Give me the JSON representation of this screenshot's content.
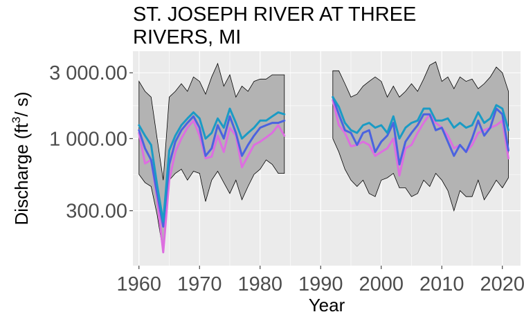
{
  "title": "ST. JOSEPH RIVER AT THREE\nRIVERS, MI",
  "chart_data": {
    "type": "line",
    "title": "ST. JOSEPH RIVER AT THREE RIVERS, MI",
    "xlabel": "Year",
    "ylabel_main": "Discharge (ft",
    "ylabel_sup": "3",
    "ylabel_tail": "/ s)",
    "y_scale": "log",
    "xlim": [
      1959,
      2023
    ],
    "ylim": [
      120,
      4300
    ],
    "x_ticks": [
      1960,
      1970,
      1980,
      1990,
      2000,
      2010,
      2020
    ],
    "x_tick_labels": [
      "1960",
      "1970",
      "1980",
      "1990",
      "2000",
      "2010",
      "2020"
    ],
    "y_ticks": [
      300,
      1000,
      3000
    ],
    "y_tick_labels": [
      "300.00",
      "1 000.00",
      "3 000.00"
    ],
    "grid": true,
    "colors": {
      "panel": "#ebebeb",
      "grid": "#ffffff",
      "ribbon": "#b3b3b3",
      "series_teal": "#1a9bc5",
      "series_blue": "#4b63e0",
      "series_magenta": "#dd6ee0"
    },
    "segments": [
      {
        "x": [
          1960,
          1961,
          1962,
          1963,
          1964,
          1965,
          1966,
          1967,
          1968,
          1969,
          1970,
          1971,
          1972,
          1973,
          1974,
          1975,
          1976,
          1977,
          1978,
          1979,
          1980,
          1981,
          1982,
          1983,
          1984
        ],
        "ribbon_upper": [
          2600,
          2200,
          2000,
          1000,
          500,
          2000,
          2200,
          2500,
          2200,
          2800,
          2600,
          2100,
          2800,
          3500,
          2400,
          2900,
          2000,
          2400,
          2200,
          2600,
          2700,
          2700,
          2900,
          2900,
          2900
        ],
        "ribbon_lower": [
          550,
          480,
          450,
          280,
          150,
          500,
          560,
          600,
          500,
          580,
          560,
          350,
          500,
          580,
          480,
          400,
          500,
          360,
          450,
          550,
          600,
          700,
          650,
          560,
          560
        ],
        "series": [
          {
            "values": [
              1250,
              1050,
              900,
              460,
              250,
              820,
              1050,
              1250,
              1400,
              1550,
              1400,
              1000,
              1100,
              1400,
              1200,
              1650,
              1300,
              1000,
              1100,
              1200,
              1350,
              1350,
              1450,
              1550,
              1500
            ]
          },
          {
            "values": [
              1150,
              850,
              700,
              400,
              230,
              650,
              950,
              1150,
              1300,
              1450,
              1200,
              750,
              850,
              1250,
              1000,
              1450,
              1100,
              750,
              900,
              1050,
              1200,
              1250,
              1300,
              1300,
              1350
            ]
          },
          {
            "values": [
              1100,
              660,
              700,
              370,
              150,
              500,
              800,
              1000,
              1200,
              1350,
              1050,
              720,
              740,
              1050,
              800,
              1200,
              1050,
              620,
              750,
              900,
              950,
              1020,
              1100,
              1250,
              1050
            ]
          }
        ]
      },
      {
        "x": [
          1992,
          1993,
          1994,
          1995,
          1996,
          1997,
          1998,
          1999,
          2000,
          2001,
          2002,
          2003,
          2004,
          2005,
          2006,
          2007,
          2008,
          2009,
          2010,
          2011,
          2012,
          2013,
          2014,
          2015,
          2016,
          2017,
          2018,
          2019,
          2020,
          2021
        ],
        "ribbon_upper": [
          3100,
          3100,
          2500,
          2000,
          2100,
          2400,
          2600,
          2800,
          2600,
          2000,
          2400,
          2000,
          2200,
          2500,
          2200,
          2700,
          3400,
          3600,
          2600,
          2800,
          2300,
          2800,
          2600,
          2700,
          2300,
          2500,
          2800,
          3300,
          3000,
          2200
        ],
        "ribbon_lower": [
          1000,
          800,
          600,
          500,
          450,
          500,
          400,
          380,
          500,
          520,
          560,
          440,
          440,
          380,
          400,
          500,
          450,
          560,
          500,
          420,
          300,
          420,
          380,
          380,
          500,
          360,
          420,
          500,
          440,
          520
        ],
        "series": [
          {
            "values": [
              2000,
              1700,
              1300,
              1150,
              1100,
              1250,
              1300,
              1200,
              1250,
              1100,
              1450,
              1000,
              1200,
              1300,
              1350,
              1650,
              1650,
              1350,
              1350,
              1400,
              1200,
              1300,
              1200,
              1250,
              1550,
              1300,
              1400,
              1750,
              1650,
              1150
            ]
          },
          {
            "values": [
              2000,
              1500,
              1150,
              1100,
              900,
              1100,
              1150,
              800,
              950,
              1050,
              1300,
              650,
              950,
              1100,
              1250,
              1500,
              1500,
              1150,
              1200,
              950,
              750,
              900,
              800,
              1000,
              1350,
              1050,
              1200,
              1650,
              1500,
              820
            ]
          },
          {
            "values": [
              1900,
              1250,
              1100,
              880,
              900,
              950,
              900,
              750,
              800,
              850,
              1000,
              540,
              850,
              900,
              1100,
              1300,
              1500,
              1300,
              1200,
              1050,
              850,
              900,
              800,
              900,
              1100,
              1150,
              1200,
              1250,
              1350,
              720
            ]
          }
        ]
      }
    ]
  }
}
